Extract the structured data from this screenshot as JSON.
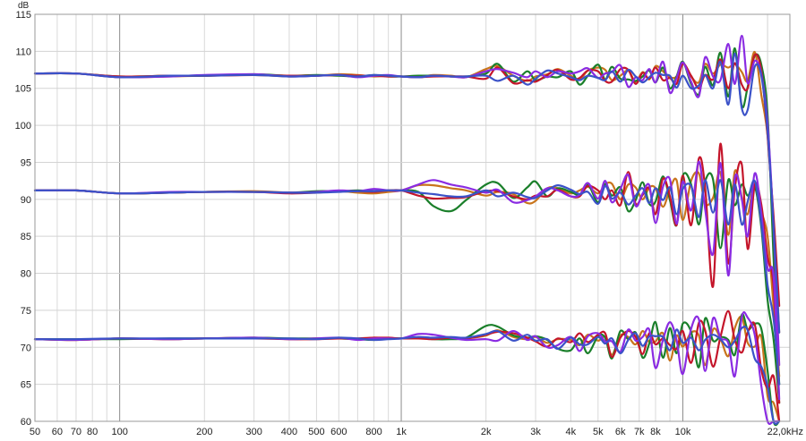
{
  "chart_data": {
    "type": "line",
    "title": "",
    "xlabel": "",
    "ylabel": "",
    "y_unit": "dB",
    "x_unit": "kHz",
    "x_scale": "log",
    "xlim": [
      50,
      24000
    ],
    "ylim": [
      60,
      115
    ],
    "grid": true,
    "legend": "none",
    "y_ticks": [
      {
        "value": 60,
        "label": "60"
      },
      {
        "value": 65,
        "label": "65"
      },
      {
        "value": 70,
        "label": "70"
      },
      {
        "value": 75,
        "label": "75"
      },
      {
        "value": 80,
        "label": "80"
      },
      {
        "value": 85,
        "label": "85"
      },
      {
        "value": 90,
        "label": "90"
      },
      {
        "value": 95,
        "label": "95"
      },
      {
        "value": 100,
        "label": "100"
      },
      {
        "value": 105,
        "label": "105"
      },
      {
        "value": 110,
        "label": "110"
      },
      {
        "value": 115,
        "label": "115"
      }
    ],
    "x_ticks": [
      {
        "value": 50,
        "label": "50"
      },
      {
        "value": 60,
        "label": "60"
      },
      {
        "value": 70,
        "label": "70"
      },
      {
        "value": 80,
        "label": "80"
      },
      {
        "value": 100,
        "label": "100"
      },
      {
        "value": 200,
        "label": "200"
      },
      {
        "value": 300,
        "label": "300"
      },
      {
        "value": 400,
        "label": "400"
      },
      {
        "value": 500,
        "label": "500"
      },
      {
        "value": 600,
        "label": "600"
      },
      {
        "value": 800,
        "label": "800"
      },
      {
        "value": 1000,
        "label": "1k"
      },
      {
        "value": 2000,
        "label": "2k"
      },
      {
        "value": 3000,
        "label": "3k"
      },
      {
        "value": 4000,
        "label": "4k"
      },
      {
        "value": 5000,
        "label": "5k"
      },
      {
        "value": 6000,
        "label": "6k"
      },
      {
        "value": 7000,
        "label": "7k"
      },
      {
        "value": 8000,
        "label": "8k"
      },
      {
        "value": 10000,
        "label": "10k"
      },
      {
        "value": 22000,
        "label": "22,0kHz"
      }
    ],
    "x": [
      50,
      70,
      100,
      150,
      200,
      300,
      400,
      500,
      600,
      700,
      800,
      900,
      1000,
      1150,
      1300,
      1500,
      1700,
      2000,
      2200,
      2500,
      2800,
      3000,
      3300,
      3600,
      4000,
      4300,
      4600,
      5000,
      5300,
      5600,
      6000,
      6400,
      6800,
      7200,
      7600,
      8000,
      8500,
      9000,
      9500,
      10000,
      10700,
      11400,
      12000,
      12800,
      13600,
      14500,
      15300,
      16200,
      17000,
      18000,
      19000,
      20000,
      21000,
      22000
    ],
    "series": [
      {
        "color": "#c8741c",
        "values": [
          107.0,
          107.0,
          106.5,
          106.6,
          106.7,
          106.8,
          106.6,
          106.7,
          106.9,
          106.8,
          106.6,
          106.7,
          106.6,
          106.5,
          106.8,
          106.7,
          106.5,
          107.6,
          108.0,
          106.7,
          106.0,
          106.6,
          106.9,
          107.6,
          106.7,
          106.2,
          107.4,
          107.8,
          107.5,
          106.1,
          106.7,
          107.4,
          105.9,
          107.2,
          106.2,
          108.0,
          107.3,
          106.5,
          106.6,
          108.4,
          106.6,
          105.8,
          108.3,
          107.0,
          108.2,
          107.8,
          108.3,
          107.2,
          106.0,
          109.9,
          104.1,
          98.6,
          87.0,
          72.0
        ]
      },
      {
        "color": "#1a7f2a",
        "values": [
          107.0,
          107.0,
          106.6,
          106.7,
          106.7,
          106.9,
          106.7,
          106.8,
          106.7,
          106.6,
          106.8,
          106.6,
          106.6,
          106.7,
          106.7,
          106.6,
          106.6,
          107.0,
          108.3,
          105.9,
          107.3,
          106.1,
          106.6,
          106.5,
          107.3,
          105.5,
          106.7,
          108.2,
          106.2,
          107.9,
          106.3,
          106.2,
          106.0,
          106.6,
          107.4,
          105.8,
          107.8,
          105.0,
          106.6,
          108.6,
          105.6,
          104.2,
          107.9,
          105.4,
          109.8,
          103.9,
          110.4,
          102.6,
          105.2,
          109.4,
          108.2,
          101.4,
          82.1,
          65.0
        ]
      },
      {
        "color": "#c4152a",
        "values": [
          107.0,
          107.0,
          106.6,
          106.7,
          106.7,
          106.8,
          106.7,
          106.7,
          106.8,
          106.7,
          106.7,
          106.6,
          106.6,
          106.5,
          106.6,
          106.6,
          106.6,
          106.3,
          107.8,
          105.7,
          106.1,
          105.9,
          106.8,
          107.5,
          106.2,
          106.4,
          107.4,
          107.3,
          106.0,
          105.9,
          107.6,
          107.5,
          105.6,
          107.1,
          106.3,
          107.8,
          106.1,
          106.4,
          105.6,
          108.3,
          106.7,
          105.0,
          106.8,
          106.2,
          108.9,
          105.0,
          108.4,
          105.5,
          105.0,
          109.5,
          107.4,
          98.6,
          87.8,
          75.6
        ]
      },
      {
        "color": "#8a2be2",
        "values": [
          107.0,
          107.0,
          106.5,
          106.6,
          106.8,
          106.9,
          106.6,
          106.7,
          106.8,
          106.5,
          106.7,
          106.8,
          106.6,
          106.5,
          106.7,
          106.6,
          106.5,
          107.3,
          107.6,
          107.1,
          106.5,
          107.3,
          106.5,
          107.3,
          107.0,
          107.3,
          107.7,
          106.4,
          107.0,
          107.2,
          108.1,
          105.2,
          106.5,
          106.1,
          107.6,
          105.8,
          108.6,
          104.4,
          106.4,
          108.5,
          105.9,
          103.9,
          109.2,
          106.6,
          106.1,
          111.0,
          105.6,
          112.1,
          105.7,
          108.7,
          106.9,
          100.2,
          86.2,
          67.6
        ]
      },
      {
        "color": "#3b52c8",
        "values": [
          107.0,
          107.0,
          106.5,
          106.7,
          106.7,
          106.8,
          106.6,
          106.7,
          106.8,
          106.6,
          106.8,
          106.7,
          106.6,
          106.5,
          106.7,
          106.6,
          106.6,
          106.7,
          106.0,
          106.7,
          105.5,
          106.3,
          107.4,
          107.0,
          106.5,
          106.1,
          106.7,
          106.4,
          106.1,
          107.3,
          105.9,
          107.5,
          106.6,
          105.8,
          106.5,
          107.1,
          106.8,
          106.7,
          105.1,
          106.7,
          105.0,
          105.4,
          106.8,
          105.0,
          108.6,
          102.8,
          109.7,
          102.3,
          102.1,
          107.9,
          106.7,
          99.1,
          86.2,
          72.0
        ]
      },
      {
        "color": "#c8741c",
        "values": [
          91.2,
          91.2,
          90.8,
          90.9,
          91.0,
          91.1,
          90.9,
          91.0,
          91.1,
          90.9,
          90.8,
          91.0,
          91.2,
          91.9,
          91.9,
          91.5,
          91.2,
          90.5,
          91.0,
          90.7,
          89.5,
          89.8,
          91.5,
          91.5,
          90.8,
          91.2,
          91.7,
          90.8,
          92.0,
          92.1,
          90.0,
          92.0,
          91.6,
          90.0,
          91.6,
          91.5,
          89.0,
          91.4,
          92.6,
          87.2,
          92.5,
          93.5,
          89.4,
          90.2,
          93.6,
          85.2,
          93.8,
          90.3,
          88.0,
          92.4,
          88.4,
          85.0,
          75.5,
          66.1
        ]
      },
      {
        "color": "#1a7f2a",
        "values": [
          91.2,
          91.2,
          90.8,
          90.9,
          91.0,
          91.0,
          90.9,
          91.1,
          91.1,
          91.2,
          91.1,
          91.2,
          91.2,
          91.0,
          89.1,
          88.4,
          89.9,
          92.0,
          92.2,
          90.2,
          91.6,
          92.4,
          90.4,
          91.5,
          91.0,
          90.6,
          92.0,
          89.6,
          92.1,
          90.5,
          91.6,
          88.4,
          89.9,
          92.3,
          89.4,
          89.7,
          93.1,
          89.9,
          86.5,
          93.2,
          92.0,
          86.6,
          92.4,
          92.7,
          83.4,
          92.6,
          89.2,
          92.0,
          90.5,
          91.8,
          86.2,
          76.4,
          71.1,
          62.5
        ]
      },
      {
        "color": "#c4152a",
        "values": [
          91.2,
          91.2,
          90.8,
          90.9,
          91.0,
          91.0,
          90.8,
          90.9,
          91.1,
          91.1,
          91.0,
          91.2,
          91.2,
          90.5,
          90.1,
          90.2,
          90.3,
          91.1,
          91.1,
          90.4,
          90.0,
          90.5,
          90.4,
          91.3,
          90.4,
          90.4,
          91.8,
          91.2,
          90.0,
          91.2,
          89.2,
          93.7,
          89.4,
          90.6,
          91.5,
          88.0,
          92.8,
          90.4,
          86.5,
          93.2,
          86.5,
          95.5,
          91.6,
          78.2,
          97.5,
          81.4,
          91.5,
          94.7,
          83.3,
          91.9,
          89.3,
          82.2,
          78.2,
          62.5
        ]
      },
      {
        "color": "#8a2be2",
        "values": [
          91.2,
          91.2,
          90.8,
          91.0,
          91.0,
          91.0,
          90.9,
          91.0,
          91.2,
          91.1,
          91.4,
          91.2,
          91.2,
          92.0,
          92.6,
          92.0,
          91.6,
          90.9,
          91.3,
          89.6,
          89.9,
          90.4,
          91.5,
          91.2,
          90.4,
          90.6,
          92.2,
          90.1,
          92.5,
          89.6,
          91.4,
          93.3,
          89.1,
          90.8,
          91.9,
          86.8,
          91.7,
          92.7,
          86.7,
          92.4,
          88.5,
          95.1,
          88.7,
          82.6,
          94.9,
          79.7,
          92.9,
          90.0,
          85.0,
          93.5,
          88.1,
          80.7,
          79.6,
          63.0
        ]
      },
      {
        "color": "#3b52c8",
        "values": [
          91.2,
          91.2,
          90.8,
          90.9,
          91.0,
          91.0,
          90.9,
          90.9,
          91.0,
          91.1,
          91.1,
          91.2,
          91.2,
          90.9,
          90.7,
          90.4,
          90.4,
          91.2,
          90.4,
          90.9,
          90.3,
          90.2,
          91.2,
          91.9,
          91.3,
          90.7,
          91.0,
          89.4,
          91.8,
          90.1,
          90.9,
          89.3,
          90.5,
          91.5,
          89.5,
          91.5,
          89.9,
          91.6,
          88.0,
          91.4,
          91.8,
          87.6,
          92.6,
          88.2,
          92.6,
          86.6,
          92.0,
          86.6,
          89.7,
          92.5,
          86.7,
          78.4,
          73.9,
          65.0
        ]
      },
      {
        "color": "#c8741c",
        "values": [
          71.1,
          71.0,
          71.2,
          71.1,
          71.2,
          71.3,
          71.1,
          71.2,
          71.2,
          71.1,
          71.3,
          71.2,
          71.2,
          71.2,
          71.2,
          71.2,
          71.2,
          71.6,
          72.3,
          71.4,
          71.1,
          71.4,
          70.6,
          71.1,
          71.0,
          70.3,
          71.7,
          70.9,
          71.4,
          69.0,
          71.6,
          71.4,
          70.4,
          72.2,
          70.7,
          70.8,
          71.9,
          68.2,
          71.6,
          70.1,
          72.0,
          71.6,
          67.6,
          72.4,
          71.2,
          68.8,
          72.6,
          74.1,
          70.6,
          70.1,
          71.4,
          63.4,
          62.5,
          60.0
        ]
      },
      {
        "color": "#1a7f2a",
        "values": [
          71.1,
          71.1,
          71.1,
          71.2,
          71.2,
          71.3,
          71.2,
          71.2,
          71.2,
          71.1,
          71.0,
          71.2,
          71.2,
          71.3,
          71.1,
          71.1,
          71.3,
          72.9,
          72.8,
          71.6,
          71.3,
          71.5,
          71.0,
          69.8,
          69.6,
          71.2,
          69.2,
          71.5,
          71.3,
          68.5,
          72.2,
          71.1,
          72.0,
          68.6,
          70.5,
          73.4,
          68.6,
          72.6,
          69.2,
          73.2,
          72.1,
          67.3,
          73.9,
          70.9,
          71.4,
          71.0,
          69.0,
          74.4,
          72.4,
          73.2,
          72.5,
          66.8,
          60.0,
          60.0
        ]
      },
      {
        "color": "#c4152a",
        "values": [
          71.1,
          71.0,
          71.2,
          71.1,
          71.2,
          71.2,
          71.1,
          71.1,
          71.2,
          71.2,
          71.3,
          71.3,
          71.2,
          71.2,
          71.1,
          71.3,
          71.2,
          71.7,
          72.1,
          71.9,
          71.3,
          70.8,
          70.1,
          71.2,
          70.7,
          71.9,
          70.7,
          71.7,
          71.9,
          68.7,
          71.3,
          72.2,
          71.4,
          69.1,
          71.9,
          70.4,
          71.2,
          70.3,
          69.8,
          72.2,
          67.9,
          73.3,
          72.3,
          67.4,
          71.4,
          74.9,
          71.0,
          69.3,
          72.0,
          73.1,
          67.0,
          64.5,
          66.1,
          60.0
        ]
      },
      {
        "color": "#8a2be2",
        "values": [
          71.1,
          71.0,
          71.2,
          71.1,
          71.2,
          71.3,
          71.1,
          71.2,
          71.3,
          71.0,
          71.2,
          71.2,
          71.2,
          71.8,
          71.7,
          71.3,
          71.0,
          71.1,
          70.9,
          72.2,
          71.0,
          71.5,
          70.0,
          70.3,
          71.4,
          69.5,
          71.5,
          71.9,
          70.8,
          70.8,
          69.4,
          72.4,
          70.9,
          71.4,
          72.4,
          67.2,
          71.0,
          73.4,
          71.0,
          66.4,
          72.5,
          73.8,
          66.8,
          73.9,
          71.3,
          70.6,
          66.1,
          74.1,
          74.0,
          71.7,
          64.8,
          60.0,
          60.0,
          60.0
        ]
      },
      {
        "color": "#3b52c8",
        "values": [
          71.1,
          71.1,
          71.2,
          71.2,
          71.2,
          71.2,
          71.2,
          71.1,
          71.3,
          71.2,
          71.0,
          71.1,
          71.2,
          71.4,
          71.3,
          71.4,
          71.3,
          71.8,
          72.2,
          70.9,
          71.7,
          70.9,
          71.1,
          69.8,
          71.3,
          70.4,
          70.4,
          71.4,
          70.5,
          71.2,
          69.2,
          71.0,
          71.9,
          70.2,
          71.5,
          71.5,
          71.4,
          69.6,
          72.4,
          70.6,
          71.3,
          69.6,
          71.0,
          71.7,
          71.1,
          70.0,
          70.9,
          72.6,
          72.3,
          68.5,
          67.4,
          64.7,
          60.0,
          60.0
        ]
      }
    ]
  }
}
